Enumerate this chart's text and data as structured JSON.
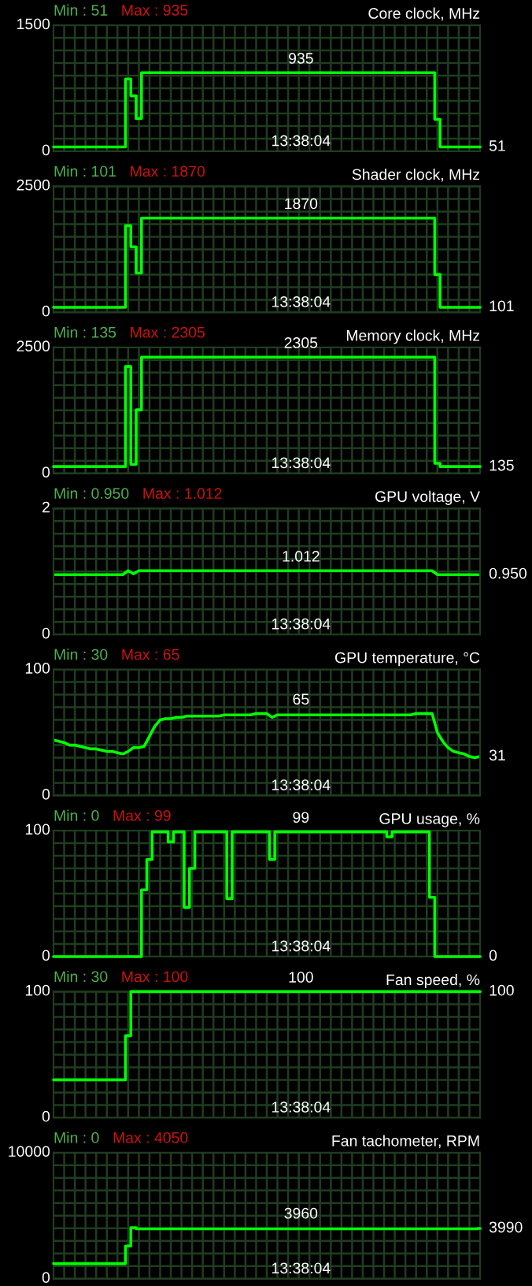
{
  "chart_data": [
    {
      "type": "step",
      "title": "Core clock, MHz",
      "annotations": [
        "Min : 51",
        "Max : 935",
        "13:38:04",
        "935",
        "51"
      ],
      "categories": [
        null,
        null,
        null,
        null,
        null,
        null,
        null,
        null,
        null,
        null,
        null,
        null,
        null,
        null,
        null,
        null,
        null,
        null,
        null,
        null,
        null,
        null,
        null,
        null,
        null,
        null,
        null,
        null,
        null,
        null,
        null,
        null,
        null,
        null,
        null,
        null,
        null,
        null,
        null,
        null,
        null,
        null,
        null,
        null,
        null,
        null,
        null,
        null,
        null,
        null,
        null,
        null,
        null,
        null,
        null,
        null,
        null,
        null,
        null,
        null,
        null,
        null,
        null,
        null,
        null,
        null,
        null,
        null,
        null,
        null,
        null,
        null,
        null,
        null,
        null,
        null,
        null,
        null,
        null,
        null,
        null
      ],
      "series": [
        {
          "color": "#00ff00",
          "values": [
            51,
            51,
            51,
            51,
            51,
            51,
            51,
            51,
            51,
            51,
            51,
            51,
            51,
            51,
            860,
            660,
            390,
            935,
            935,
            935,
            935,
            935,
            935,
            935,
            935,
            935,
            935,
            935,
            935,
            935,
            935,
            935,
            935,
            935,
            935,
            935,
            935,
            935,
            935,
            935,
            935,
            935,
            935,
            935,
            935,
            935,
            935,
            935,
            935,
            935,
            935,
            935,
            935,
            935,
            935,
            935,
            935,
            935,
            935,
            935,
            935,
            935,
            935,
            935,
            935,
            935,
            935,
            935,
            935,
            935,
            935,
            935,
            380,
            51,
            51,
            51,
            51,
            51,
            51,
            51,
            51
          ]
        }
      ],
      "ylim": [
        0,
        1500
      ],
      "yticks": [
        0,
        {
          "value": 150,
          "label": null
        },
        {
          "value": 300,
          "label": null
        },
        {
          "value": 450,
          "label": null
        },
        {
          "value": 600,
          "label": null
        },
        {
          "value": 750,
          "label": null
        },
        {
          "value": 900,
          "label": null
        },
        {
          "value": 1050,
          "label": null
        },
        {
          "value": 1200,
          "label": null
        },
        {
          "value": 1350,
          "label": null
        },
        {
          "value": 1500,
          "label": "1500"
        }
      ],
      "grid": true,
      "line_style": "solid"
    },
    {
      "type": "step",
      "title": "Shader clock, MHz",
      "annotations": [
        "Min : 101",
        "Max : 1870",
        "13:38:04",
        "1870",
        "101"
      ],
      "categories": [
        null,
        null,
        null,
        null,
        null,
        null,
        null,
        null,
        null,
        null,
        null,
        null,
        null,
        null,
        null,
        null,
        null,
        null,
        null,
        null,
        null,
        null,
        null,
        null,
        null,
        null,
        null,
        null,
        null,
        null,
        null,
        null,
        null,
        null,
        null,
        null,
        null,
        null,
        null,
        null,
        null,
        null,
        null,
        null,
        null,
        null,
        null,
        null,
        null,
        null,
        null,
        null,
        null,
        null,
        null,
        null,
        null,
        null,
        null,
        null,
        null,
        null,
        null,
        null,
        null,
        null,
        null,
        null,
        null,
        null,
        null,
        null,
        null,
        null,
        null,
        null,
        null,
        null,
        null,
        null,
        null
      ],
      "series": [
        {
          "color": "#00ff00",
          "values": [
            101,
            101,
            101,
            101,
            101,
            101,
            101,
            101,
            101,
            101,
            101,
            101,
            101,
            101,
            1720,
            1300,
            780,
            1870,
            1870,
            1870,
            1870,
            1870,
            1870,
            1870,
            1870,
            1870,
            1870,
            1870,
            1870,
            1870,
            1870,
            1870,
            1870,
            1870,
            1870,
            1870,
            1870,
            1870,
            1870,
            1870,
            1870,
            1870,
            1870,
            1870,
            1870,
            1870,
            1870,
            1870,
            1870,
            1870,
            1870,
            1870,
            1870,
            1870,
            1870,
            1870,
            1870,
            1870,
            1870,
            1870,
            1870,
            1870,
            1870,
            1870,
            1870,
            1870,
            1870,
            1870,
            1870,
            1870,
            1870,
            1870,
            750,
            101,
            101,
            101,
            101,
            101,
            101,
            101,
            101
          ]
        }
      ],
      "ylim": [
        0,
        2500
      ],
      "yticks": [
        0,
        {
          "value": 250,
          "label": null
        },
        {
          "value": 500,
          "label": null
        },
        {
          "value": 750,
          "label": null
        },
        {
          "value": 1000,
          "label": null
        },
        {
          "value": 1250,
          "label": null
        },
        {
          "value": 1500,
          "label": null
        },
        {
          "value": 1750,
          "label": null
        },
        {
          "value": 2000,
          "label": null
        },
        {
          "value": 2250,
          "label": null
        },
        {
          "value": 2500,
          "label": "2500"
        }
      ],
      "grid": true,
      "line_style": "solid"
    },
    {
      "type": "step",
      "title": "Memory clock, MHz",
      "annotations": [
        "Min : 135",
        "Max : 2305",
        "13:38:04",
        "2305",
        "135"
      ],
      "categories": [
        null,
        null,
        null,
        null,
        null,
        null,
        null,
        null,
        null,
        null,
        null,
        null,
        null,
        null,
        null,
        null,
        null,
        null,
        null,
        null,
        null,
        null,
        null,
        null,
        null,
        null,
        null,
        null,
        null,
        null,
        null,
        null,
        null,
        null,
        null,
        null,
        null,
        null,
        null,
        null,
        null,
        null,
        null,
        null,
        null,
        null,
        null,
        null,
        null,
        null,
        null,
        null,
        null,
        null,
        null,
        null,
        null,
        null,
        null,
        null,
        null,
        null,
        null,
        null,
        null,
        null,
        null,
        null,
        null,
        null,
        null,
        null,
        null,
        null,
        null,
        null,
        null,
        null,
        null,
        null,
        null
      ],
      "series": [
        {
          "color": "#00ff00",
          "values": [
            135,
            135,
            135,
            135,
            135,
            135,
            135,
            135,
            135,
            135,
            135,
            135,
            135,
            135,
            2120,
            180,
            1260,
            2305,
            2305,
            2305,
            2305,
            2305,
            2305,
            2305,
            2305,
            2305,
            2305,
            2305,
            2305,
            2305,
            2305,
            2305,
            2305,
            2305,
            2305,
            2305,
            2305,
            2305,
            2305,
            2305,
            2305,
            2305,
            2305,
            2305,
            2305,
            2305,
            2305,
            2305,
            2305,
            2305,
            2305,
            2305,
            2305,
            2305,
            2305,
            2305,
            2305,
            2305,
            2305,
            2305,
            2305,
            2305,
            2305,
            2305,
            2305,
            2305,
            2305,
            2305,
            2305,
            2305,
            2305,
            2305,
            200,
            135,
            135,
            135,
            135,
            135,
            135,
            135,
            135
          ]
        }
      ],
      "ylim": [
        0,
        2500
      ],
      "yticks": [
        0,
        {
          "value": 250,
          "label": null
        },
        {
          "value": 500,
          "label": null
        },
        {
          "value": 750,
          "label": null
        },
        {
          "value": 1000,
          "label": null
        },
        {
          "value": 1250,
          "label": null
        },
        {
          "value": 1500,
          "label": null
        },
        {
          "value": 1750,
          "label": null
        },
        {
          "value": 2000,
          "label": null
        },
        {
          "value": 2250,
          "label": null
        },
        {
          "value": 2500,
          "label": "2500"
        }
      ],
      "grid": true,
      "line_style": "solid"
    },
    {
      "type": "line",
      "title": "GPU voltage, V",
      "annotations": [
        "Min : 0.950",
        "Max : 1.012",
        "13:38:04",
        "1.012",
        "0.950"
      ],
      "categories": [
        null,
        null,
        null,
        null,
        null,
        null,
        null,
        null,
        null,
        null,
        null,
        null,
        null,
        null,
        null,
        null,
        null,
        null,
        null,
        null,
        null,
        null,
        null,
        null,
        null,
        null,
        null,
        null,
        null,
        null,
        null,
        null,
        null,
        null,
        null,
        null,
        null,
        null,
        null,
        null,
        null,
        null,
        null,
        null,
        null,
        null,
        null,
        null,
        null,
        null,
        null,
        null,
        null,
        null,
        null,
        null,
        null,
        null,
        null,
        null,
        null,
        null,
        null,
        null,
        null,
        null,
        null,
        null,
        null,
        null,
        null,
        null,
        null,
        null,
        null,
        null,
        null,
        null,
        null,
        null,
        null
      ],
      "series": [
        {
          "color": "#00ff00",
          "values": [
            0.95,
            0.95,
            0.95,
            0.95,
            0.95,
            0.95,
            0.95,
            0.95,
            0.95,
            0.95,
            0.95,
            0.95,
            0.95,
            0.95,
            1.012,
            0.962,
            1.012,
            1.012,
            1.012,
            1.012,
            1.012,
            1.012,
            1.012,
            1.012,
            1.012,
            1.012,
            1.012,
            1.012,
            1.012,
            1.012,
            1.012,
            1.012,
            1.012,
            1.012,
            1.012,
            1.012,
            1.012,
            1.012,
            1.012,
            1.012,
            1.012,
            1.012,
            1.012,
            1.012,
            1.012,
            1.012,
            1.012,
            1.012,
            1.012,
            1.012,
            1.012,
            1.012,
            1.012,
            1.012,
            1.012,
            1.012,
            1.012,
            1.012,
            1.012,
            1.012,
            1.012,
            1.012,
            1.012,
            1.012,
            1.012,
            1.012,
            1.012,
            1.012,
            1.012,
            1.012,
            1.012,
            1.012,
            0.95,
            0.95,
            0.95,
            0.95,
            0.95,
            0.95,
            0.95,
            0.95,
            0.95
          ]
        }
      ],
      "ylim": [
        0,
        2
      ],
      "yticks": [
        0,
        {
          "value": 0.2,
          "label": null
        },
        {
          "value": 0.4,
          "label": null
        },
        {
          "value": 0.6,
          "label": null
        },
        {
          "value": 0.8,
          "label": null
        },
        {
          "value": 1.0,
          "label": null
        },
        {
          "value": 1.2,
          "label": null
        },
        {
          "value": 1.4,
          "label": null
        },
        {
          "value": 1.6,
          "label": null
        },
        {
          "value": 1.8,
          "label": null
        },
        {
          "value": 2,
          "label": "2"
        }
      ],
      "grid": true,
      "line_style": "solid"
    },
    {
      "type": "line",
      "title": "GPU temperature, °C",
      "annotations": [
        "Min : 30",
        "Max : 65",
        "13:38:04",
        "65",
        "31"
      ],
      "categories": [
        null,
        null,
        null,
        null,
        null,
        null,
        null,
        null,
        null,
        null,
        null,
        null,
        null,
        null,
        null,
        null,
        null,
        null,
        null,
        null,
        null,
        null,
        null,
        null,
        null,
        null,
        null,
        null,
        null,
        null,
        null,
        null,
        null,
        null,
        null,
        null,
        null,
        null,
        null,
        null,
        null,
        null,
        null,
        null,
        null,
        null,
        null,
        null,
        null,
        null,
        null,
        null,
        null,
        null,
        null,
        null,
        null,
        null,
        null,
        null,
        null,
        null,
        null,
        null,
        null,
        null,
        null,
        null,
        null,
        null,
        null,
        null,
        null,
        null,
        null,
        null,
        null,
        null,
        null,
        null,
        null
      ],
      "series": [
        {
          "color": "#00ff00",
          "values": [
            44,
            43,
            42,
            40,
            40,
            39,
            38,
            37,
            37,
            36,
            35,
            35,
            34,
            33,
            35,
            38,
            38,
            39,
            47,
            55,
            60,
            61,
            61,
            62,
            62,
            63,
            63,
            63,
            63,
            63,
            63,
            63,
            64,
            64,
            64,
            64,
            64,
            64,
            65,
            65,
            65,
            62,
            64,
            64,
            64,
            64,
            64,
            64,
            64,
            64,
            64,
            64,
            64,
            64,
            64,
            64,
            64,
            64,
            64,
            64,
            64,
            64,
            64,
            64,
            64,
            64,
            64,
            64,
            65,
            65,
            65,
            65,
            50,
            43,
            38,
            35,
            34,
            33,
            31,
            30,
            31
          ]
        }
      ],
      "ylim": [
        0,
        100
      ],
      "yticks": [
        0,
        {
          "value": 10,
          "label": null
        },
        {
          "value": 20,
          "label": null
        },
        {
          "value": 30,
          "label": null
        },
        {
          "value": 40,
          "label": null
        },
        {
          "value": 50,
          "label": null
        },
        {
          "value": 60,
          "label": null
        },
        {
          "value": 70,
          "label": null
        },
        {
          "value": 80,
          "label": null
        },
        {
          "value": 90,
          "label": null
        },
        100
      ],
      "grid": true,
      "line_style": "solid"
    },
    {
      "type": "step",
      "title": "GPU usage, %",
      "annotations": [
        "Min : 0",
        "Max : 99",
        "13:38:04",
        "99",
        "0"
      ],
      "categories": [
        null,
        null,
        null,
        null,
        null,
        null,
        null,
        null,
        null,
        null,
        null,
        null,
        null,
        null,
        null,
        null,
        null,
        null,
        null,
        null,
        null,
        null,
        null,
        null,
        null,
        null,
        null,
        null,
        null,
        null,
        null,
        null,
        null,
        null,
        null,
        null,
        null,
        null,
        null,
        null,
        null,
        null,
        null,
        null,
        null,
        null,
        null,
        null,
        null,
        null,
        null,
        null,
        null,
        null,
        null,
        null,
        null,
        null,
        null,
        null,
        null,
        null,
        null,
        null,
        null,
        null,
        null,
        null,
        null,
        null,
        null,
        null,
        null,
        null,
        null,
        null,
        null,
        null,
        null,
        null,
        null
      ],
      "series": [
        {
          "color": "#00ff00",
          "values": [
            0,
            0,
            0,
            0,
            0,
            0,
            0,
            0,
            0,
            0,
            0,
            0,
            0,
            0,
            0,
            0,
            0,
            53,
            77,
            99,
            99,
            99,
            91,
            99,
            99,
            39,
            70,
            99,
            99,
            99,
            99,
            99,
            99,
            46,
            99,
            99,
            99,
            99,
            99,
            99,
            99,
            77,
            99,
            99,
            99,
            99,
            99,
            99,
            99,
            99,
            99,
            99,
            99,
            99,
            99,
            99,
            99,
            99,
            99,
            99,
            99,
            99,
            99,
            95,
            99,
            99,
            99,
            99,
            99,
            99,
            99,
            47,
            0,
            0,
            0,
            0,
            0,
            0,
            0,
            0,
            0
          ]
        }
      ],
      "ylim": [
        0,
        100
      ],
      "yticks": [
        0,
        {
          "value": 10,
          "label": null
        },
        {
          "value": 20,
          "label": null
        },
        {
          "value": 30,
          "label": null
        },
        {
          "value": 40,
          "label": null
        },
        {
          "value": 50,
          "label": null
        },
        {
          "value": 60,
          "label": null
        },
        {
          "value": 70,
          "label": null
        },
        {
          "value": 80,
          "label": null
        },
        {
          "value": 90,
          "label": null
        },
        100
      ],
      "grid": true,
      "line_style": "solid"
    },
    {
      "type": "step",
      "title": "Fan speed, %",
      "annotations": [
        "Min : 30",
        "Max : 100",
        "13:38:04",
        "100",
        "100"
      ],
      "categories": [
        null,
        null,
        null,
        null,
        null,
        null,
        null,
        null,
        null,
        null,
        null,
        null,
        null,
        null,
        null,
        null,
        null,
        null,
        null,
        null,
        null,
        null,
        null,
        null,
        null,
        null,
        null,
        null,
        null,
        null,
        null,
        null,
        null,
        null,
        null,
        null,
        null,
        null,
        null,
        null,
        null,
        null,
        null,
        null,
        null,
        null,
        null,
        null,
        null,
        null,
        null,
        null,
        null,
        null,
        null,
        null,
        null,
        null,
        null,
        null,
        null,
        null,
        null,
        null,
        null,
        null,
        null,
        null,
        null,
        null,
        null,
        null,
        null,
        null,
        null,
        null,
        null,
        null,
        null,
        null,
        null
      ],
      "series": [
        {
          "color": "#00ff00",
          "values": [
            30,
            30,
            30,
            30,
            30,
            30,
            30,
            30,
            30,
            30,
            30,
            30,
            30,
            30,
            65,
            100,
            100,
            100,
            100,
            100,
            100,
            100,
            100,
            100,
            100,
            100,
            100,
            100,
            100,
            100,
            100,
            100,
            100,
            100,
            100,
            100,
            100,
            100,
            100,
            100,
            100,
            100,
            100,
            100,
            100,
            100,
            100,
            100,
            100,
            100,
            100,
            100,
            100,
            100,
            100,
            100,
            100,
            100,
            100,
            100,
            100,
            100,
            100,
            100,
            100,
            100,
            100,
            100,
            100,
            100,
            100,
            100,
            100,
            100,
            100,
            100,
            100,
            100,
            100,
            100,
            100
          ]
        }
      ],
      "ylim": [
        0,
        100
      ],
      "yticks": [
        0,
        {
          "value": 10,
          "label": null
        },
        {
          "value": 20,
          "label": null
        },
        {
          "value": 30,
          "label": null
        },
        {
          "value": 40,
          "label": null
        },
        {
          "value": 50,
          "label": null
        },
        {
          "value": 60,
          "label": null
        },
        {
          "value": 70,
          "label": null
        },
        {
          "value": 80,
          "label": null
        },
        {
          "value": 90,
          "label": null
        },
        100
      ],
      "grid": true,
      "line_style": "solid"
    },
    {
      "type": "step",
      "title": "Fan tachometer, RPM",
      "annotations": [
        "Min : 0",
        "Max : 4050",
        "13:38:04",
        "3960",
        "3990"
      ],
      "categories": [
        null,
        null,
        null,
        null,
        null,
        null,
        null,
        null,
        null,
        null,
        null,
        null,
        null,
        null,
        null,
        null,
        null,
        null,
        null,
        null,
        null,
        null,
        null,
        null,
        null,
        null,
        null,
        null,
        null,
        null,
        null,
        null,
        null,
        null,
        null,
        null,
        null,
        null,
        null,
        null,
        null,
        null,
        null,
        null,
        null,
        null,
        null,
        null,
        null,
        null,
        null,
        null,
        null,
        null,
        null,
        null,
        null,
        null,
        null,
        null,
        null,
        null,
        null,
        null,
        null,
        null,
        null,
        null,
        null,
        null,
        null,
        null,
        null,
        null,
        null,
        null,
        null,
        null,
        null,
        null,
        null
      ],
      "series": [
        {
          "color": "#00ff00",
          "values": [
            1200,
            1200,
            1200,
            1200,
            1200,
            1200,
            1200,
            1200,
            1200,
            1200,
            1200,
            1200,
            1200,
            1200,
            2600,
            4050,
            3960,
            3960,
            3960,
            3960,
            3960,
            3960,
            3960,
            3960,
            3960,
            3960,
            3960,
            3960,
            3960,
            3960,
            3960,
            3960,
            3960,
            3960,
            3960,
            3960,
            3960,
            3960,
            3960,
            3960,
            3960,
            3960,
            3960,
            3960,
            3960,
            3960,
            3960,
            3960,
            3960,
            3960,
            3960,
            3960,
            3960,
            3960,
            3960,
            3960,
            3960,
            3960,
            3960,
            3960,
            3960,
            3960,
            3960,
            3960,
            3960,
            3960,
            3960,
            3960,
            3960,
            3960,
            3960,
            3960,
            3960,
            3960,
            3960,
            3960,
            3960,
            3960,
            3960,
            3960,
            3990
          ]
        }
      ],
      "ylim": [
        0,
        10000
      ],
      "yticks": [
        0,
        {
          "value": 1000,
          "label": null
        },
        {
          "value": 2000,
          "label": null
        },
        {
          "value": 3000,
          "label": null
        },
        {
          "value": 4000,
          "label": null
        },
        {
          "value": 5000,
          "label": null
        },
        {
          "value": 6000,
          "label": null
        },
        {
          "value": 7000,
          "label": null
        },
        {
          "value": 8000,
          "label": null
        },
        {
          "value": 9000,
          "label": null
        },
        {
          "value": 10000,
          "label": "10000"
        }
      ],
      "grid": true,
      "line_style": "solid"
    }
  ]
}
